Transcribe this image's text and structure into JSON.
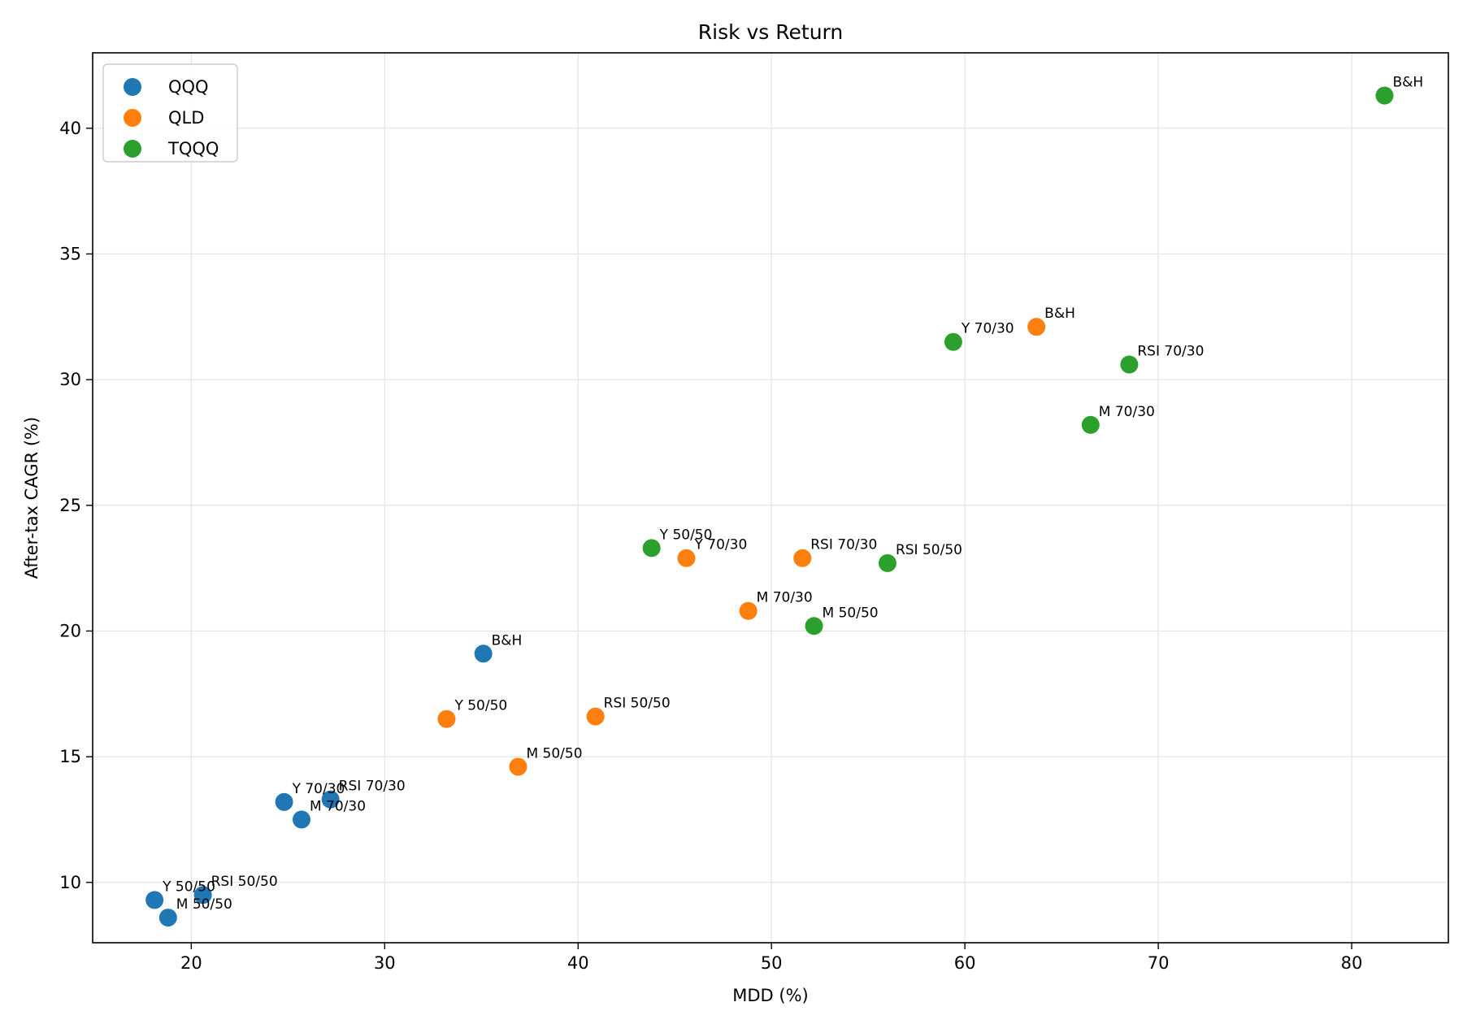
{
  "chart_data": {
    "type": "scatter",
    "title": "Risk vs Return",
    "xlabel": "MDD (%)",
    "ylabel": "After-tax CAGR (%)",
    "xlim": [
      14.9,
      85.0
    ],
    "ylim": [
      7.6,
      43.0
    ],
    "xticks": [
      20,
      30,
      40,
      50,
      60,
      70,
      80
    ],
    "yticks": [
      10,
      15,
      20,
      25,
      30,
      35,
      40
    ],
    "grid": true,
    "legend_position": "top-left",
    "series": [
      {
        "name": "QQQ",
        "color": "#1f77b4",
        "points": [
          {
            "x": 35.1,
            "y": 19.1,
            "label": "B&H"
          },
          {
            "x": 18.1,
            "y": 9.3,
            "label": "Y 50/50"
          },
          {
            "x": 18.8,
            "y": 8.6,
            "label": "M 50/50"
          },
          {
            "x": 20.6,
            "y": 9.5,
            "label": "RSI 50/50"
          },
          {
            "x": 24.8,
            "y": 13.2,
            "label": "Y 70/30"
          },
          {
            "x": 25.7,
            "y": 12.5,
            "label": "M 70/30"
          },
          {
            "x": 27.2,
            "y": 13.3,
            "label": "RSI 70/30"
          }
        ]
      },
      {
        "name": "QLD",
        "color": "#ff7f0e",
        "points": [
          {
            "x": 63.7,
            "y": 32.1,
            "label": "B&H"
          },
          {
            "x": 33.2,
            "y": 16.5,
            "label": "Y 50/50"
          },
          {
            "x": 36.9,
            "y": 14.6,
            "label": "M 50/50"
          },
          {
            "x": 40.9,
            "y": 16.6,
            "label": "RSI 50/50"
          },
          {
            "x": 45.6,
            "y": 22.9,
            "label": "Y 70/30"
          },
          {
            "x": 48.8,
            "y": 20.8,
            "label": "M 70/30"
          },
          {
            "x": 51.6,
            "y": 22.9,
            "label": "RSI 70/30"
          }
        ]
      },
      {
        "name": "TQQQ",
        "color": "#2ca02c",
        "points": [
          {
            "x": 81.7,
            "y": 41.3,
            "label": "B&H"
          },
          {
            "x": 43.8,
            "y": 23.3,
            "label": "Y 50/50"
          },
          {
            "x": 52.2,
            "y": 20.2,
            "label": "M 50/50"
          },
          {
            "x": 56.0,
            "y": 22.7,
            "label": "RSI 50/50"
          },
          {
            "x": 59.4,
            "y": 31.5,
            "label": "Y 70/30"
          },
          {
            "x": 66.5,
            "y": 28.2,
            "label": "M 70/30"
          },
          {
            "x": 68.5,
            "y": 30.6,
            "label": "RSI 70/30"
          }
        ]
      }
    ]
  }
}
